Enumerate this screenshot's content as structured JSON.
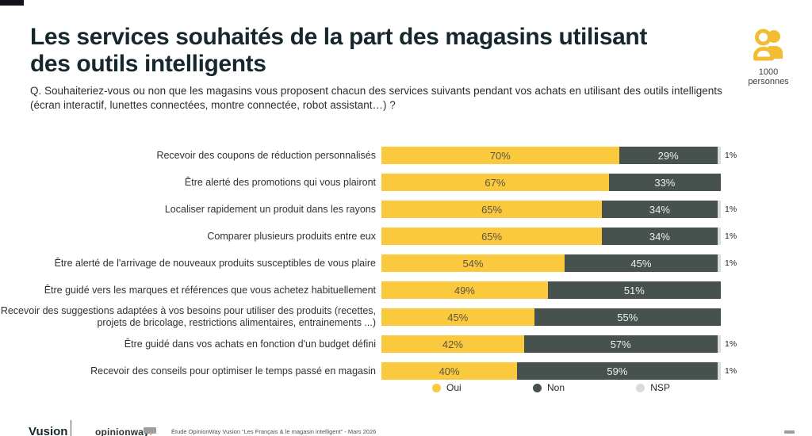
{
  "header": {
    "title_line1": "Les services souhaités de la part des magasins utilisant",
    "title_line2": "des outils intelligents",
    "question": "Q. Souhaiteriez-vous ou non que les magasins vous proposent chacun des services suivants pendant vos achats en utilisant des outils intelligents (écran interactif, lunettes connectées, montre connectée, robot assistant…) ?",
    "sample": {
      "value": "1000",
      "label": "personnes"
    }
  },
  "colors": {
    "title": "#16282E",
    "oui": "#FBC93D",
    "non": "#47524F",
    "nsp": "#D9DCDB",
    "icon_yellow": "#F2BD35"
  },
  "chart_data": {
    "type": "bar",
    "orientation": "horizontal-stacked",
    "value_suffix": "%",
    "xlim": [
      0,
      100
    ],
    "grid": false,
    "legend_position": "bottom",
    "categories": [
      "Recevoir des coupons de réduction personnalisés",
      "Être alerté des promotions qui vous plairont",
      "Localiser rapidement un produit dans les rayons",
      "Comparer plusieurs produits entre eux",
      "Être alerté de l'arrivage de nouveaux produits susceptibles de vous plaire",
      "Être guidé vers les marques et références que vous achetez habituellement",
      "Recevoir des suggestions adaptées à vos besoins pour utiliser des produits (recettes, projets de bricolage, restrictions alimentaires, entrainements ...)",
      "Être guidé dans vos achats en fonction d'un budget défini",
      "Recevoir des conseils pour optimiser le temps passé en magasin"
    ],
    "series": [
      {
        "name": "Oui",
        "key": "oui",
        "color": "#FBC93D",
        "show_label": true,
        "values": [
          70,
          67,
          65,
          65,
          54,
          49,
          45,
          42,
          40
        ]
      },
      {
        "name": "Non",
        "key": "non",
        "color": "#47524F",
        "show_label": true,
        "values": [
          29,
          33,
          34,
          34,
          45,
          51,
          55,
          57,
          59
        ]
      },
      {
        "name": "NSP",
        "key": "nsp",
        "color": "#D9DCDB",
        "show_label": false,
        "values": [
          1,
          0,
          1,
          1,
          1,
          0,
          0,
          1,
          1
        ]
      }
    ]
  },
  "footer": {
    "brand": "Vusion",
    "agency": "opinionway",
    "agency_accent": ":",
    "source": "Étude OpinionWay Vusion “Les Français & le magasin intelligent” - Mars 2026"
  }
}
